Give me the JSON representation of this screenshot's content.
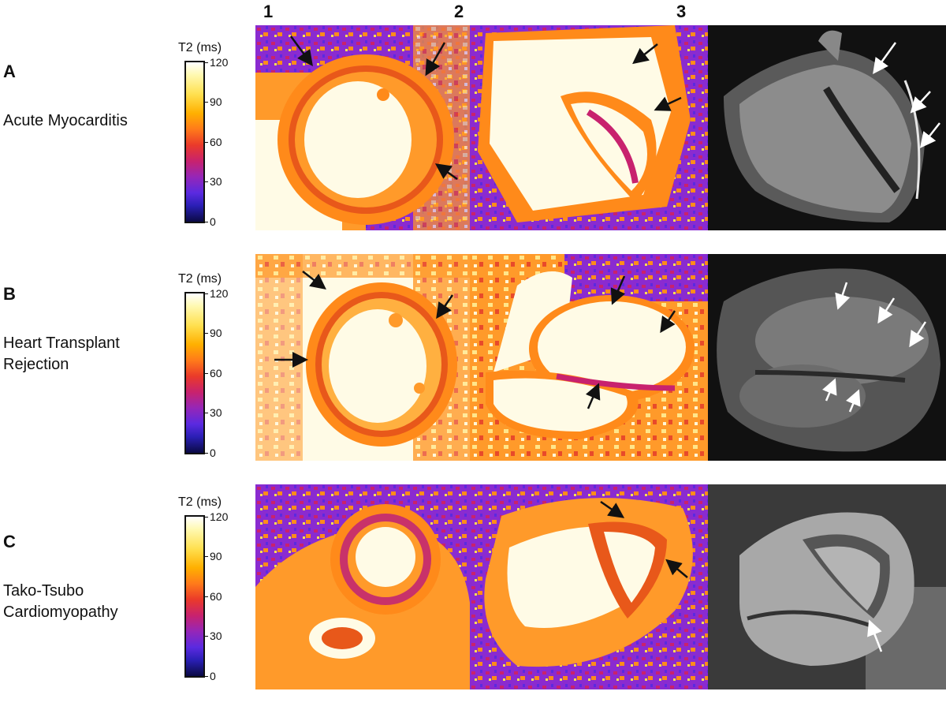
{
  "columns": [
    "1",
    "2",
    "3"
  ],
  "colorbar": {
    "title": "T2 (ms)",
    "ticks": [
      "120",
      "90",
      "60",
      "30",
      "0"
    ]
  },
  "rows": [
    {
      "letter": "A",
      "label_lines": [
        "Acute Myocarditis"
      ]
    },
    {
      "letter": "B",
      "label_lines": [
        "Heart Transplant",
        "Rejection"
      ]
    },
    {
      "letter": "C",
      "label_lines": [
        "Tako-Tsubo",
        "Cardiomyopathy"
      ]
    }
  ],
  "colors": {
    "map_bright": "#fffbe6",
    "map_orange": "#ff8c1a",
    "map_purple": "#8a2bd0",
    "arrow_black": "#111111",
    "arrow_white": "#ffffff"
  }
}
